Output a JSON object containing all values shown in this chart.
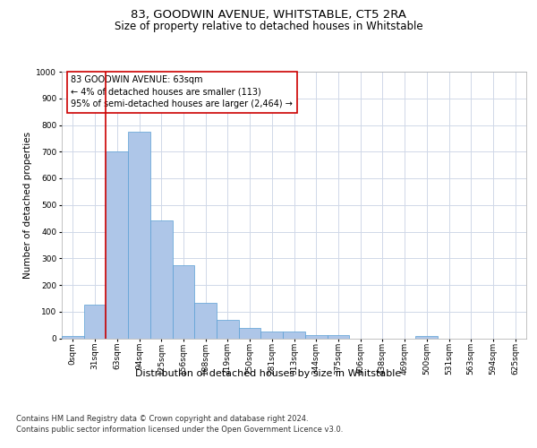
{
  "title": "83, GOODWIN AVENUE, WHITSTABLE, CT5 2RA",
  "subtitle": "Size of property relative to detached houses in Whitstable",
  "xlabel": "Distribution of detached houses by size in Whitstable",
  "ylabel": "Number of detached properties",
  "footer_line1": "Contains HM Land Registry data © Crown copyright and database right 2024.",
  "footer_line2": "Contains public sector information licensed under the Open Government Licence v3.0.",
  "annotation_line1": "83 GOODWIN AVENUE: 63sqm",
  "annotation_line2": "← 4% of detached houses are smaller (113)",
  "annotation_line3": "95% of semi-detached houses are larger (2,464) →",
  "categories": [
    "0sqm",
    "31sqm",
    "63sqm",
    "94sqm",
    "125sqm",
    "156sqm",
    "188sqm",
    "219sqm",
    "250sqm",
    "281sqm",
    "313sqm",
    "344sqm",
    "375sqm",
    "406sqm",
    "438sqm",
    "469sqm",
    "500sqm",
    "531sqm",
    "563sqm",
    "594sqm",
    "625sqm"
  ],
  "values": [
    8,
    125,
    700,
    775,
    443,
    275,
    132,
    70,
    40,
    25,
    25,
    13,
    13,
    0,
    0,
    0,
    10,
    0,
    0,
    0,
    0
  ],
  "bar_color": "#aec6e8",
  "bar_edge_color": "#5a9fd4",
  "red_line_index": 2,
  "ylim": [
    0,
    1000
  ],
  "yticks": [
    0,
    100,
    200,
    300,
    400,
    500,
    600,
    700,
    800,
    900,
    1000
  ],
  "bg_color": "#ffffff",
  "grid_color": "#d0d8e8",
  "annotation_box_color": "#cc0000",
  "red_line_color": "#cc0000",
  "title_fontsize": 9.5,
  "subtitle_fontsize": 8.5,
  "xlabel_fontsize": 8,
  "ylabel_fontsize": 7.5,
  "tick_fontsize": 6.5,
  "annotation_fontsize": 7,
  "footer_fontsize": 6
}
